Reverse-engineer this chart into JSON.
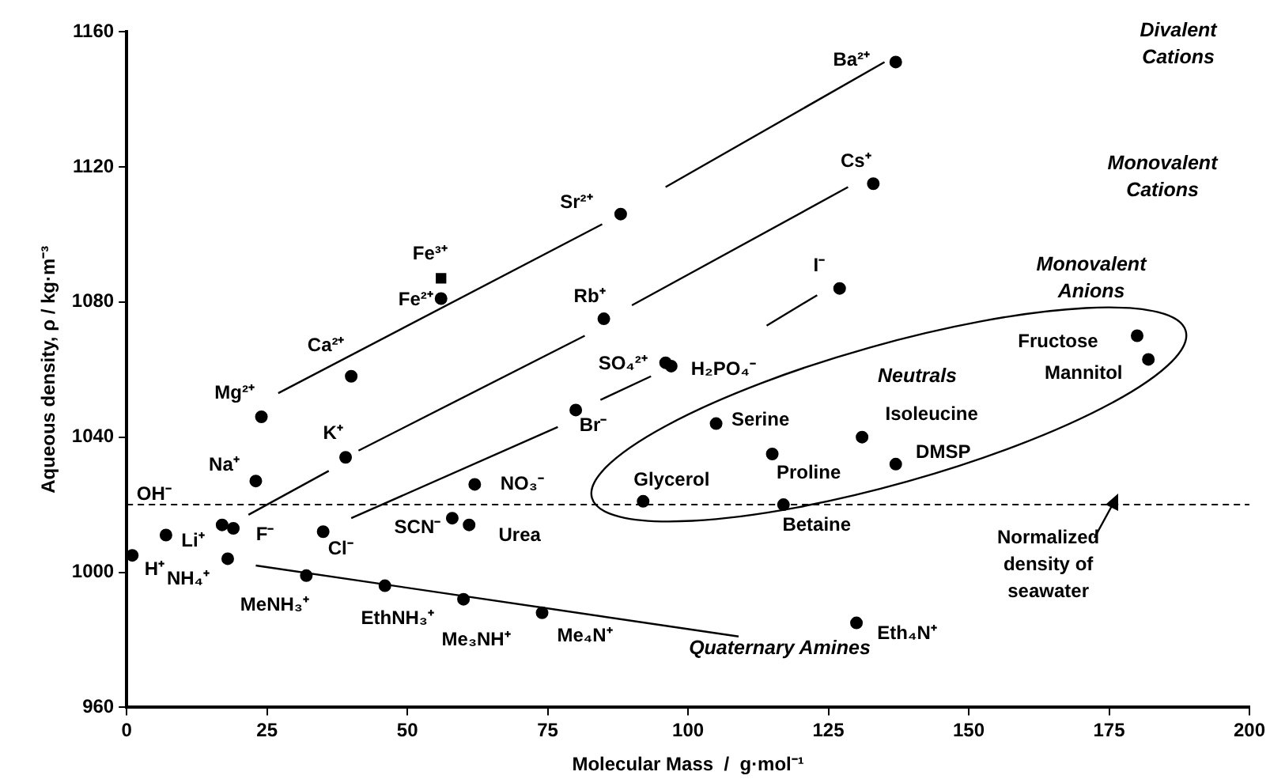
{
  "chart_data": {
    "type": "scatter",
    "xlabel": "Molecular Mass  /  g·mol⁻¹",
    "ylabel": "Aqueous density, ρ / kg·m⁻³",
    "xlim": [
      0,
      200
    ],
    "xticks": [
      0,
      25,
      50,
      75,
      100,
      125,
      150,
      175,
      200
    ],
    "ylim": [
      960,
      1160
    ],
    "yticks": [
      960,
      1000,
      1040,
      1080,
      1120,
      1160
    ],
    "grid": false,
    "legend": false,
    "series": [
      {
        "type": "scatter",
        "marker": "circle",
        "color": "#000000",
        "x": [
          1,
          7,
          17,
          19,
          18,
          23,
          24,
          40,
          56,
          39,
          35,
          32,
          46,
          60,
          74,
          58,
          61,
          62,
          88,
          137,
          133,
          85,
          80,
          96,
          97,
          127,
          105,
          115,
          92,
          117,
          131,
          137,
          130,
          180,
          182
        ],
        "values": [
          1005,
          1011,
          1014,
          1013,
          1004,
          1027,
          1046,
          1058,
          1081,
          1034,
          1012,
          999,
          996,
          992,
          988,
          1016,
          1014,
          1026,
          1106,
          1151,
          1115,
          1075,
          1048,
          1062,
          1061,
          1084,
          1044,
          1035,
          1021,
          1020,
          1040,
          1032,
          985,
          1070,
          1063
        ]
      },
      {
        "type": "scatter",
        "marker": "square",
        "color": "#000000",
        "x": [
          56
        ],
        "values": [
          1087
        ]
      },
      {
        "type": "line",
        "marker": "none",
        "color": "#000000",
        "x": [
          27,
          84.7,
          90,
          96,
          135
        ],
        "values": [
          1053,
          1103,
          null,
          1114,
          1151
        ]
      },
      {
        "type": "line",
        "marker": "none",
        "color": "#000000",
        "x": [
          21.7,
          36,
          38,
          41.3,
          81.6,
          86,
          90,
          128.5
        ],
        "values": [
          1017,
          1030,
          null,
          1036,
          1070,
          null,
          1079,
          1114
        ]
      },
      {
        "type": "line",
        "marker": "none",
        "color": "#000000",
        "x": [
          40,
          76.8,
          80,
          84.4,
          93.4,
          104,
          114,
          123
        ],
        "values": [
          1016,
          1043,
          null,
          1051,
          1058,
          null,
          1073,
          1082
        ]
      },
      {
        "type": "line",
        "marker": "none",
        "color": "#000000",
        "x": [
          23,
          109
        ],
        "values": [
          1002,
          981
        ]
      }
    ],
    "ref_lines": [
      {
        "axis": "y",
        "value": 1020,
        "color": "#000000",
        "line_style": "dashed"
      }
    ],
    "annotations": [
      {
        "text": "H⁺",
        "x": 1,
        "y": 1005
      },
      {
        "text": "Li⁺",
        "x": 7,
        "y": 1011
      },
      {
        "text": "OH⁻",
        "x": 17,
        "y": 1014
      },
      {
        "text": "F⁻",
        "x": 19,
        "y": 1013
      },
      {
        "text": "NH₄⁺",
        "x": 18,
        "y": 1004
      },
      {
        "text": "Na⁺",
        "x": 23,
        "y": 1027
      },
      {
        "text": "Mg²⁺",
        "x": 24,
        "y": 1046
      },
      {
        "text": "Ca²⁺",
        "x": 40,
        "y": 1058
      },
      {
        "text": "Fe²⁺",
        "x": 56,
        "y": 1081
      },
      {
        "text": "Fe³⁺",
        "x": 56,
        "y": 1087
      },
      {
        "text": "K⁺",
        "x": 39,
        "y": 1034
      },
      {
        "text": "Cl⁻",
        "x": 35,
        "y": 1012
      },
      {
        "text": "MeNH₃⁺",
        "x": 32,
        "y": 999
      },
      {
        "text": "EthNH₃⁺",
        "x": 46,
        "y": 996
      },
      {
        "text": "Me₃NH⁺",
        "x": 60,
        "y": 992
      },
      {
        "text": "Me₄N⁺",
        "x": 74,
        "y": 988
      },
      {
        "text": "SCN⁻",
        "x": 58,
        "y": 1016
      },
      {
        "text": "Urea",
        "x": 61,
        "y": 1014
      },
      {
        "text": "NO₃⁻",
        "x": 62,
        "y": 1026
      },
      {
        "text": "Sr²⁺",
        "x": 88,
        "y": 1106
      },
      {
        "text": "Ba²⁺",
        "x": 137,
        "y": 1151
      },
      {
        "text": "Cs⁺",
        "x": 133,
        "y": 1115
      },
      {
        "text": "Rb⁺",
        "x": 85,
        "y": 1075
      },
      {
        "text": "Br⁻",
        "x": 80,
        "y": 1048
      },
      {
        "text": "SO₄²⁺",
        "x": 96,
        "y": 1062
      },
      {
        "text": "H₂PO₄⁻",
        "x": 97,
        "y": 1061
      },
      {
        "text": "I⁻",
        "x": 127,
        "y": 1084
      },
      {
        "text": "Serine",
        "x": 105,
        "y": 1044
      },
      {
        "text": "Proline",
        "x": 115,
        "y": 1035
      },
      {
        "text": "Glycerol",
        "x": 92,
        "y": 1021
      },
      {
        "text": "Betaine",
        "x": 117,
        "y": 1020
      },
      {
        "text": "Isoleucine",
        "x": 131,
        "y": 1040
      },
      {
        "text": "DMSP",
        "x": 137,
        "y": 1032
      },
      {
        "text": "Eth₄N⁺",
        "x": 130,
        "y": 985
      },
      {
        "text": "Fructose",
        "x": 180,
        "y": 1070
      },
      {
        "text": "Mannitol",
        "x": 182,
        "y": 1063
      },
      {
        "text": "Normalized density of seawater",
        "x": 176,
        "y": 1020
      },
      "Divalent Cations",
      "Monovalent Cations",
      "Monovalent Anions",
      "Neutrals",
      "Quaternary Amines"
    ]
  }
}
